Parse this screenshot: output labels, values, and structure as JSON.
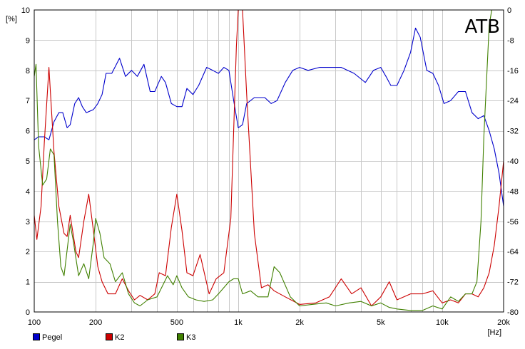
{
  "brand": "ATB",
  "chart_data": {
    "type": "line",
    "title": "",
    "xscale": "log",
    "xlim": [
      100,
      20000
    ],
    "x_ticks": [
      100,
      200,
      500,
      1000,
      2000,
      5000,
      10000,
      20000
    ],
    "x_tick_labels": [
      "100",
      "200",
      "500",
      "1k",
      "2k",
      "5k",
      "10k",
      "20k"
    ],
    "x_unit": "[Hz]",
    "y_left": {
      "unit": "[%]",
      "lim": [
        0,
        10
      ],
      "ticks": [
        0,
        1,
        2,
        3,
        4,
        5,
        6,
        7,
        8,
        9,
        10
      ],
      "tick_labels": [
        "0",
        "1",
        "2",
        "3",
        "4",
        "5",
        "6",
        "7",
        "8",
        "9",
        "10"
      ]
    },
    "y_right": {
      "lim": [
        -80,
        0
      ],
      "ticks": [
        -80,
        -72,
        -64,
        -56,
        -48,
        -40,
        -32,
        -24,
        -16,
        -8,
        0
      ],
      "tick_labels": [
        "-80",
        "-72",
        "-64",
        "-56",
        "-48",
        "-40",
        "-32",
        "-24",
        "-16",
        "-8",
        "0"
      ]
    },
    "grid": true,
    "legend_position": "bottom-left",
    "series": [
      {
        "name": "Pegel",
        "axis": "right",
        "color": "#0000cc",
        "points": [
          [
            100,
            -34.4
          ],
          [
            105,
            -33.6
          ],
          [
            112,
            -33.6
          ],
          [
            118,
            -34.4
          ],
          [
            125,
            -29.6
          ],
          [
            132,
            -27.2
          ],
          [
            138,
            -27.2
          ],
          [
            145,
            -31.2
          ],
          [
            150,
            -30.4
          ],
          [
            158,
            -24.8
          ],
          [
            165,
            -23.2
          ],
          [
            172,
            -25.6
          ],
          [
            180,
            -27.2
          ],
          [
            195,
            -26.4
          ],
          [
            205,
            -24.8
          ],
          [
            215,
            -22.4
          ],
          [
            225,
            -16.8
          ],
          [
            240,
            -16.8
          ],
          [
            262,
            -12.8
          ],
          [
            280,
            -17.6
          ],
          [
            300,
            -16
          ],
          [
            320,
            -17.6
          ],
          [
            345,
            -14.4
          ],
          [
            370,
            -21.6
          ],
          [
            390,
            -21.6
          ],
          [
            420,
            -17.6
          ],
          [
            440,
            -19.2
          ],
          [
            470,
            -24.8
          ],
          [
            500,
            -25.6
          ],
          [
            530,
            -25.6
          ],
          [
            560,
            -20.8
          ],
          [
            600,
            -22.4
          ],
          [
            640,
            -20
          ],
          [
            700,
            -15.2
          ],
          [
            750,
            -16
          ],
          [
            800,
            -16.8
          ],
          [
            850,
            -15.2
          ],
          [
            900,
            -16
          ],
          [
            950,
            -24
          ],
          [
            1000,
            -31.2
          ],
          [
            1050,
            -30.4
          ],
          [
            1100,
            -24.8
          ],
          [
            1200,
            -23.2
          ],
          [
            1350,
            -23.2
          ],
          [
            1450,
            -24.8
          ],
          [
            1550,
            -24
          ],
          [
            1700,
            -19.2
          ],
          [
            1850,
            -16
          ],
          [
            2000,
            -15.2
          ],
          [
            2200,
            -16
          ],
          [
            2500,
            -15.2
          ],
          [
            2800,
            -15.2
          ],
          [
            3200,
            -15.2
          ],
          [
            3700,
            -16.8
          ],
          [
            4200,
            -19.2
          ],
          [
            4600,
            -16
          ],
          [
            5000,
            -15.2
          ],
          [
            5300,
            -17.6
          ],
          [
            5600,
            -20
          ],
          [
            6000,
            -20
          ],
          [
            6500,
            -16
          ],
          [
            7000,
            -11.2
          ],
          [
            7400,
            -4.8
          ],
          [
            7800,
            -7.2
          ],
          [
            8400,
            -16
          ],
          [
            9000,
            -16.8
          ],
          [
            9600,
            -20
          ],
          [
            10200,
            -24.8
          ],
          [
            11000,
            -24
          ],
          [
            12000,
            -21.6
          ],
          [
            13000,
            -21.6
          ],
          [
            14000,
            -27.2
          ],
          [
            15000,
            -28.8
          ],
          [
            16000,
            -28
          ],
          [
            17000,
            -32
          ],
          [
            18000,
            -36.8
          ],
          [
            19000,
            -43.2
          ],
          [
            20000,
            -52
          ]
        ]
      },
      {
        "name": "K2",
        "axis": "left",
        "color": "#cc0000",
        "points": [
          [
            100,
            3.2
          ],
          [
            103,
            2.4
          ],
          [
            108,
            3.5
          ],
          [
            112,
            5.6
          ],
          [
            118,
            8.1
          ],
          [
            125,
            5.3
          ],
          [
            132,
            3.5
          ],
          [
            140,
            2.6
          ],
          [
            145,
            2.5
          ],
          [
            150,
            3.2
          ],
          [
            160,
            2
          ],
          [
            165,
            1.8
          ],
          [
            175,
            3
          ],
          [
            185,
            3.9
          ],
          [
            195,
            2.7
          ],
          [
            205,
            1.5
          ],
          [
            215,
            1
          ],
          [
            230,
            0.6
          ],
          [
            250,
            0.6
          ],
          [
            270,
            1.1
          ],
          [
            290,
            0.7
          ],
          [
            310,
            0.4
          ],
          [
            330,
            0.55
          ],
          [
            360,
            0.4
          ],
          [
            390,
            0.6
          ],
          [
            410,
            1.3
          ],
          [
            440,
            1.2
          ],
          [
            470,
            2.8
          ],
          [
            500,
            3.9
          ],
          [
            530,
            2.7
          ],
          [
            560,
            1.3
          ],
          [
            600,
            1.2
          ],
          [
            650,
            1.9
          ],
          [
            720,
            0.6
          ],
          [
            780,
            1.1
          ],
          [
            850,
            1.3
          ],
          [
            920,
            3.1
          ],
          [
            980,
            8.8
          ],
          [
            1000,
            10
          ],
          [
            1050,
            10
          ],
          [
            1100,
            7.2
          ],
          [
            1200,
            2.6
          ],
          [
            1300,
            0.8
          ],
          [
            1400,
            0.9
          ],
          [
            1500,
            0.7
          ],
          [
            1700,
            0.5
          ],
          [
            2000,
            0.25
          ],
          [
            2400,
            0.3
          ],
          [
            2800,
            0.5
          ],
          [
            3200,
            1.1
          ],
          [
            3600,
            0.6
          ],
          [
            4000,
            0.8
          ],
          [
            4500,
            0.2
          ],
          [
            5000,
            0.5
          ],
          [
            5500,
            1
          ],
          [
            6000,
            0.4
          ],
          [
            7000,
            0.6
          ],
          [
            8000,
            0.6
          ],
          [
            9000,
            0.7
          ],
          [
            10000,
            0.3
          ],
          [
            11000,
            0.4
          ],
          [
            12000,
            0.3
          ],
          [
            13000,
            0.6
          ],
          [
            14000,
            0.6
          ],
          [
            15000,
            0.5
          ],
          [
            16000,
            0.8
          ],
          [
            17000,
            1.3
          ],
          [
            18000,
            2.2
          ],
          [
            19000,
            3.5
          ],
          [
            20000,
            5
          ]
        ]
      },
      {
        "name": "K3",
        "axis": "left",
        "color": "#408000",
        "points": [
          [
            100,
            7.8
          ],
          [
            102,
            8.2
          ],
          [
            105,
            5.5
          ],
          [
            110,
            4.2
          ],
          [
            115,
            4.4
          ],
          [
            120,
            5.4
          ],
          [
            125,
            5.2
          ],
          [
            130,
            3
          ],
          [
            135,
            1.5
          ],
          [
            140,
            1.2
          ],
          [
            150,
            2.9
          ],
          [
            155,
            2.4
          ],
          [
            165,
            1.2
          ],
          [
            175,
            1.6
          ],
          [
            185,
            1.1
          ],
          [
            195,
            2.3
          ],
          [
            200,
            3.1
          ],
          [
            210,
            2.6
          ],
          [
            220,
            1.8
          ],
          [
            235,
            1.6
          ],
          [
            250,
            1
          ],
          [
            270,
            1.3
          ],
          [
            290,
            0.6
          ],
          [
            310,
            0.3
          ],
          [
            330,
            0.2
          ],
          [
            360,
            0.4
          ],
          [
            400,
            0.5
          ],
          [
            450,
            1.2
          ],
          [
            480,
            0.9
          ],
          [
            500,
            1.2
          ],
          [
            530,
            0.8
          ],
          [
            570,
            0.5
          ],
          [
            620,
            0.4
          ],
          [
            680,
            0.35
          ],
          [
            750,
            0.4
          ],
          [
            800,
            0.6
          ],
          [
            900,
            1
          ],
          [
            950,
            1.1
          ],
          [
            1000,
            1.1
          ],
          [
            1050,
            0.6
          ],
          [
            1150,
            0.7
          ],
          [
            1250,
            0.5
          ],
          [
            1400,
            0.5
          ],
          [
            1500,
            1.5
          ],
          [
            1600,
            1.3
          ],
          [
            1800,
            0.5
          ],
          [
            2000,
            0.2
          ],
          [
            2300,
            0.25
          ],
          [
            2700,
            0.3
          ],
          [
            3000,
            0.2
          ],
          [
            3500,
            0.3
          ],
          [
            4000,
            0.35
          ],
          [
            4500,
            0.2
          ],
          [
            5000,
            0.3
          ],
          [
            5500,
            0.15
          ],
          [
            6000,
            0.1
          ],
          [
            7000,
            0.05
          ],
          [
            8000,
            0.05
          ],
          [
            9000,
            0.2
          ],
          [
            10000,
            0.1
          ],
          [
            11000,
            0.5
          ],
          [
            12000,
            0.35
          ],
          [
            13000,
            0.6
          ],
          [
            14000,
            0.6
          ],
          [
            14800,
            1
          ],
          [
            15500,
            3
          ],
          [
            16000,
            5.8
          ],
          [
            17000,
            9.5
          ],
          [
            17500,
            10
          ],
          [
            20000,
            10
          ]
        ]
      }
    ]
  }
}
